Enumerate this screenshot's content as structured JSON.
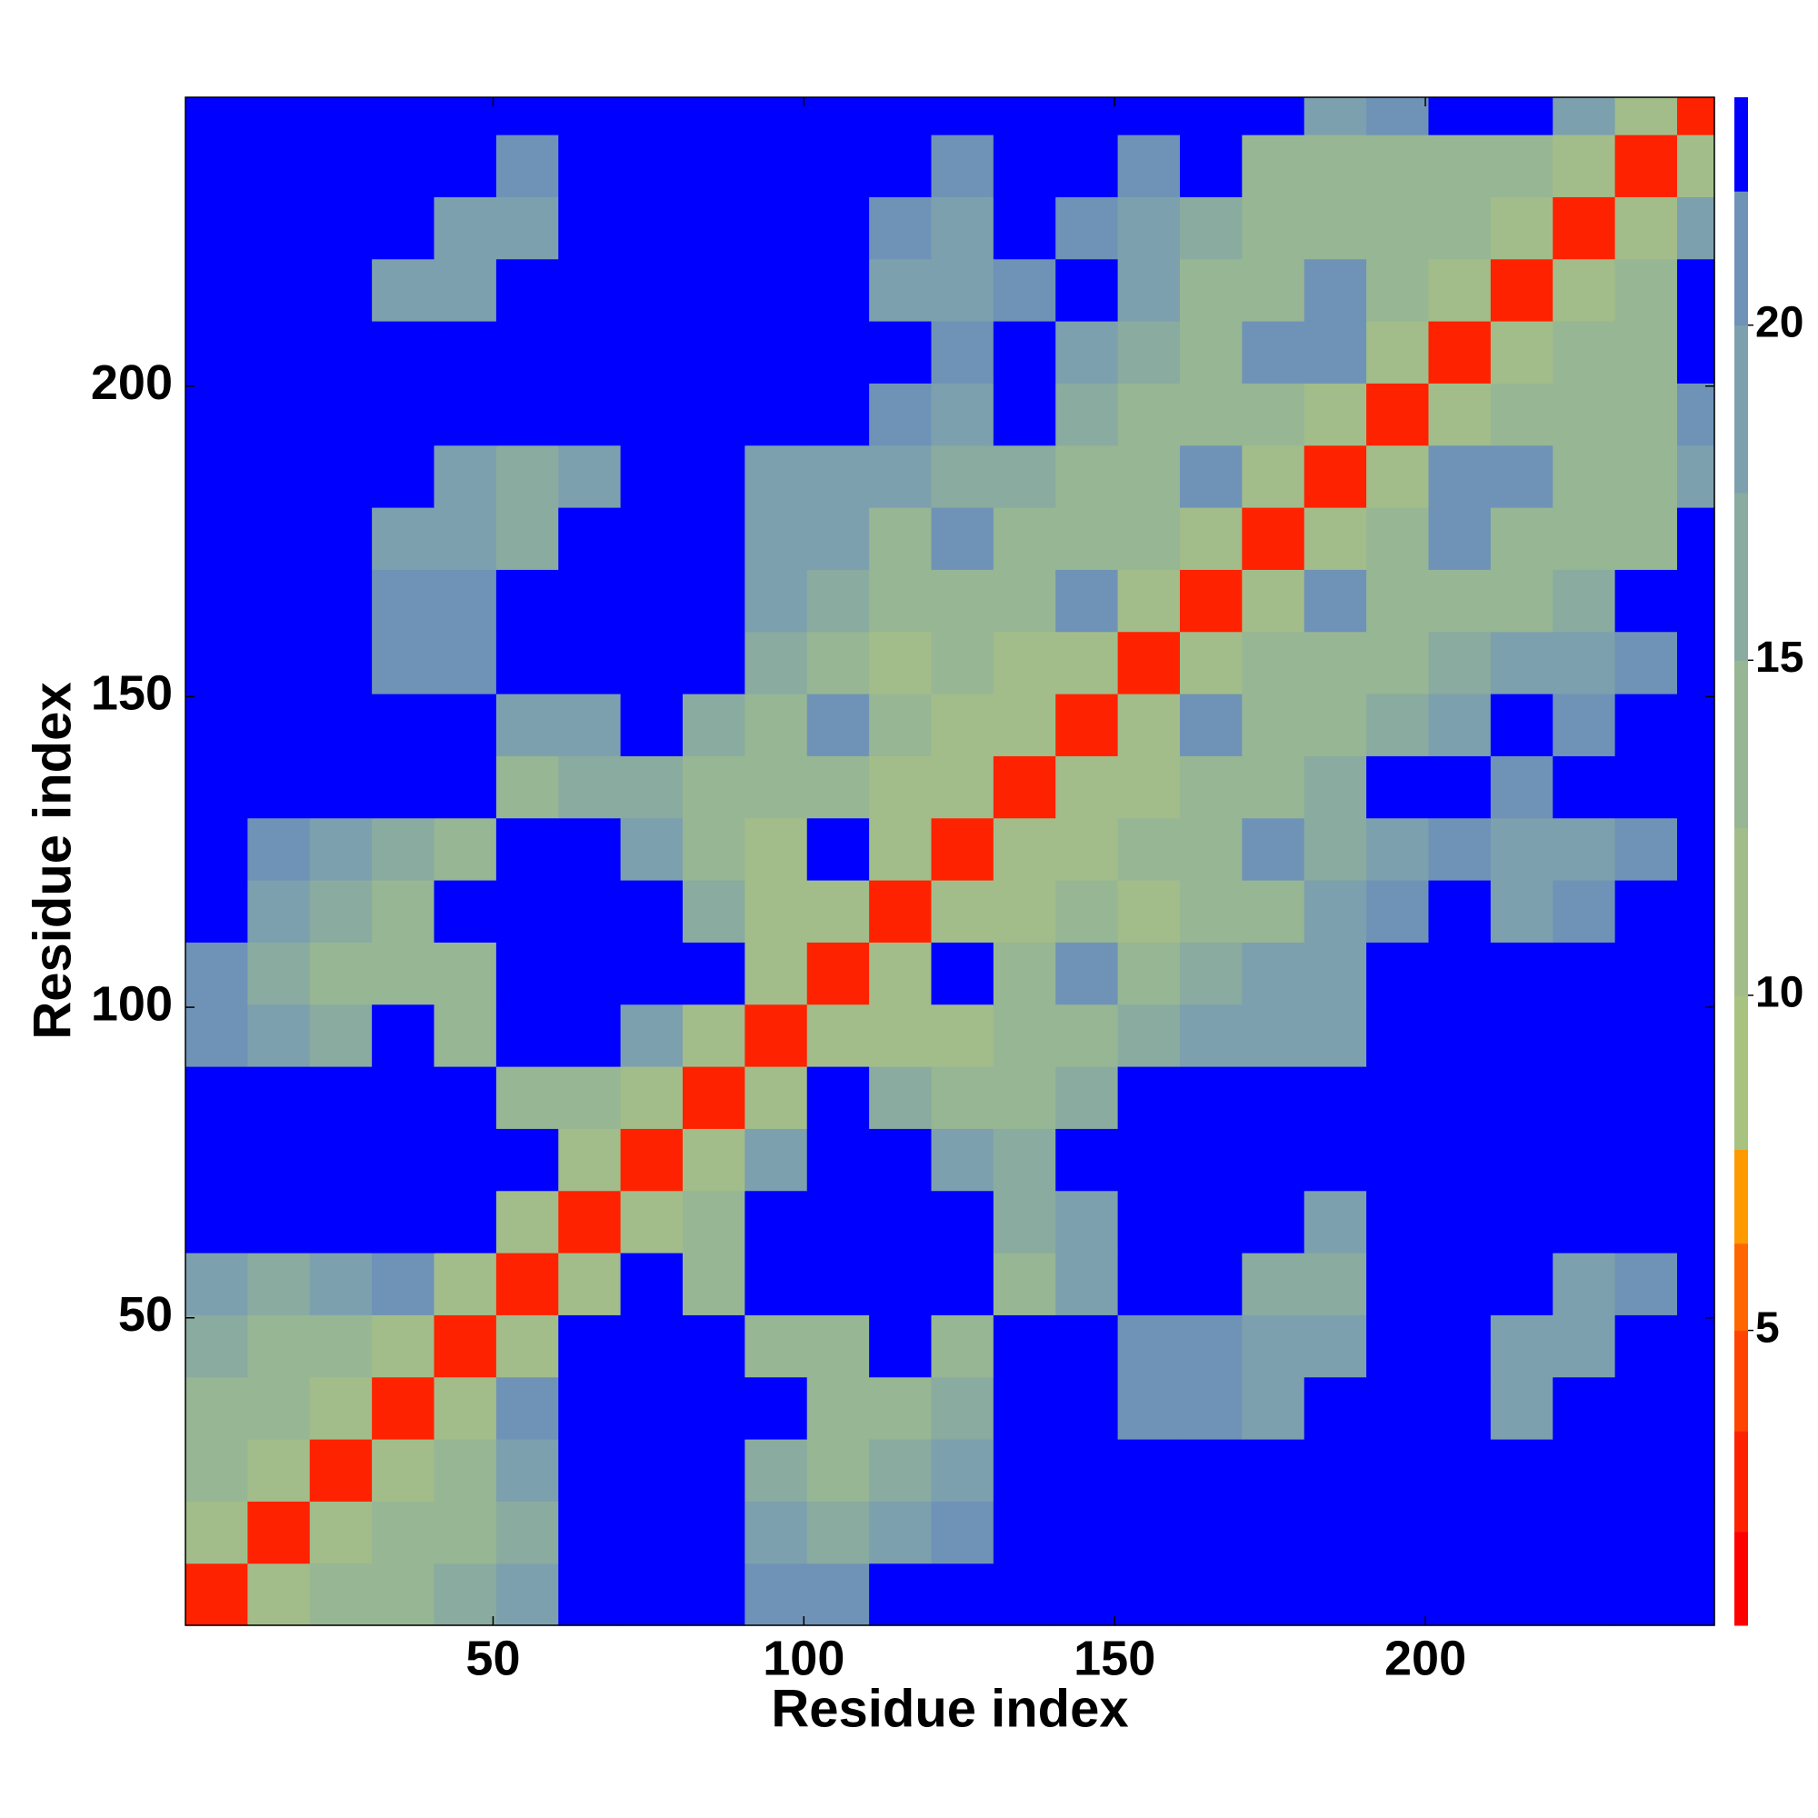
{
  "chart_data": {
    "type": "heatmap",
    "xlabel": "Residue index",
    "ylabel": "Residue index",
    "xlim": [
      0.5,
      246.5
    ],
    "ylim": [
      0.5,
      246.5
    ],
    "xticks": [
      50,
      100,
      150,
      200
    ],
    "yticks": [
      50,
      100,
      150,
      200
    ],
    "xbins": [
      0.5,
      10.5,
      20.5,
      30.5,
      40.5,
      50.5,
      60.5,
      70.5,
      80.5,
      90.5,
      100.5,
      110.5,
      120.5,
      130.5,
      140.5,
      150.5,
      160.5,
      170.5,
      180.5,
      190.5,
      200.5,
      210.5,
      220.5,
      230.5,
      240.5,
      246.5
    ],
    "ybins": [
      0.5,
      10.5,
      20.5,
      30.5,
      40.5,
      50.5,
      60.5,
      70.5,
      80.5,
      90.5,
      100.5,
      110.5,
      120.5,
      130.5,
      140.5,
      150.5,
      160.5,
      170.5,
      180.5,
      190.5,
      200.5,
      210.5,
      220.5,
      230.5,
      240.5,
      246.5
    ],
    "z": [
      [
        3,
        12,
        13,
        14,
        16,
        19,
        23,
        23,
        23,
        21,
        21,
        23,
        23,
        23,
        23,
        23,
        23,
        23,
        23,
        23,
        23,
        23,
        23,
        23,
        23
      ],
      [
        12,
        3,
        12,
        13,
        13,
        17,
        23,
        23,
        23,
        19,
        17,
        19,
        21,
        23,
        23,
        23,
        23,
        23,
        23,
        23,
        23,
        23,
        23,
        23,
        23
      ],
      [
        13,
        12,
        3,
        12,
        14,
        18,
        23,
        23,
        23,
        16,
        15,
        16,
        20,
        23,
        23,
        23,
        23,
        23,
        23,
        23,
        23,
        23,
        23,
        23,
        23
      ],
      [
        14,
        13,
        12,
        3,
        12,
        21,
        23,
        23,
        23,
        23,
        13,
        15,
        17,
        23,
        23,
        21,
        21,
        20,
        23,
        23,
        23,
        19,
        23,
        23,
        23
      ],
      [
        16,
        13,
        14,
        12,
        3,
        12,
        23,
        23,
        23,
        13,
        14,
        23,
        14,
        23,
        23,
        21,
        21,
        18,
        19,
        23,
        23,
        18,
        18,
        23,
        23
      ],
      [
        19,
        17,
        18,
        21,
        12,
        3,
        12,
        23,
        13,
        23,
        23,
        23,
        23,
        14,
        20,
        23,
        23,
        17,
        17,
        23,
        23,
        23,
        20,
        21,
        23
      ],
      [
        23,
        23,
        23,
        23,
        23,
        12,
        3,
        12,
        14,
        23,
        23,
        23,
        23,
        16,
        20,
        23,
        23,
        23,
        19,
        23,
        23,
        23,
        23,
        23,
        23
      ],
      [
        23,
        23,
        23,
        23,
        23,
        23,
        12,
        3,
        12,
        18,
        23,
        23,
        18,
        16,
        23,
        23,
        23,
        23,
        23,
        23,
        23,
        23,
        23,
        23,
        23
      ],
      [
        23,
        23,
        23,
        23,
        23,
        13,
        14,
        12,
        3,
        12,
        23,
        16,
        13,
        13,
        16,
        23,
        23,
        23,
        23,
        23,
        23,
        23,
        23,
        23,
        23
      ],
      [
        21,
        19,
        16,
        23,
        13,
        23,
        23,
        18,
        12,
        3,
        12,
        12,
        12,
        14,
        14,
        16,
        20,
        20,
        20,
        23,
        23,
        23,
        23,
        23,
        23
      ],
      [
        21,
        17,
        15,
        13,
        14,
        23,
        23,
        23,
        23,
        12,
        3,
        12,
        23,
        14,
        21,
        14,
        17,
        18,
        20,
        23,
        23,
        23,
        23,
        23,
        23
      ],
      [
        23,
        19,
        16,
        15,
        23,
        23,
        23,
        23,
        16,
        12,
        12,
        3,
        12,
        12,
        13,
        12,
        13,
        14,
        18,
        21,
        23,
        20,
        21,
        23,
        23
      ],
      [
        23,
        21,
        20,
        17,
        14,
        23,
        23,
        18,
        13,
        12,
        23,
        12,
        3,
        12,
        12,
        13,
        14,
        21,
        17,
        19,
        21,
        18,
        19,
        21,
        23
      ],
      [
        23,
        23,
        23,
        23,
        23,
        14,
        16,
        16,
        13,
        14,
        14,
        12,
        12,
        3,
        12,
        12,
        13,
        14,
        16,
        23,
        23,
        21,
        23,
        23,
        23
      ],
      [
        23,
        23,
        23,
        23,
        23,
        20,
        20,
        23,
        16,
        14,
        21,
        13,
        12,
        12,
        3,
        12,
        21,
        13,
        14,
        16,
        19,
        23,
        21,
        23,
        23
      ],
      [
        23,
        23,
        23,
        21,
        21,
        23,
        23,
        23,
        23,
        16,
        14,
        12,
        13,
        12,
        12,
        3,
        12,
        13,
        13,
        13,
        16,
        18,
        20,
        21,
        23
      ],
      [
        23,
        23,
        23,
        21,
        21,
        23,
        23,
        23,
        23,
        20,
        17,
        13,
        14,
        13,
        21,
        12,
        3,
        12,
        21,
        14,
        13,
        15,
        17,
        23,
        23
      ],
      [
        23,
        23,
        23,
        20,
        18,
        17,
        23,
        23,
        23,
        20,
        18,
        14,
        21,
        14,
        13,
        13,
        12,
        3,
        12,
        13,
        21,
        13,
        13,
        15,
        23
      ],
      [
        23,
        23,
        23,
        23,
        19,
        17,
        19,
        23,
        23,
        20,
        20,
        18,
        17,
        16,
        14,
        13,
        21,
        12,
        3,
        12,
        21,
        21,
        13,
        14,
        20
      ],
      [
        23,
        23,
        23,
        23,
        23,
        23,
        23,
        23,
        23,
        23,
        23,
        21,
        19,
        23,
        16,
        13,
        14,
        13,
        12,
        3,
        12,
        13,
        13,
        14,
        21
      ],
      [
        23,
        23,
        23,
        23,
        23,
        23,
        23,
        23,
        23,
        23,
        23,
        23,
        21,
        23,
        19,
        16,
        13,
        21,
        21,
        12,
        3,
        12,
        14,
        15,
        23
      ],
      [
        23,
        23,
        23,
        19,
        18,
        23,
        23,
        23,
        23,
        23,
        23,
        20,
        18,
        21,
        23,
        18,
        15,
        13,
        21,
        13,
        12,
        3,
        12,
        14,
        23
      ],
      [
        23,
        23,
        23,
        23,
        18,
        20,
        23,
        23,
        23,
        23,
        23,
        21,
        19,
        23,
        21,
        20,
        17,
        13,
        13,
        13,
        14,
        12,
        3,
        12,
        18
      ],
      [
        23,
        23,
        23,
        23,
        23,
        21,
        23,
        23,
        23,
        23,
        23,
        23,
        21,
        23,
        23,
        21,
        23,
        15,
        14,
        14,
        15,
        14,
        12,
        3,
        12
      ],
      [
        23,
        23,
        23,
        23,
        23,
        23,
        23,
        23,
        23,
        23,
        23,
        23,
        23,
        23,
        23,
        23,
        23,
        23,
        20,
        21,
        23,
        23,
        18,
        12,
        3
      ]
    ],
    "colorbar": {
      "levels": [
        0.6,
        2,
        3.5,
        5,
        6.3,
        7.7,
        10,
        12.5,
        15,
        17.5,
        20,
        22,
        23.4
      ],
      "colors": [
        "#ff0000",
        "#ff2200",
        "#ff4400",
        "#ff6600",
        "#ff9900",
        "#a8c280",
        "#a2bd8a",
        "#97b694",
        "#8aab9f",
        "#7da0ae",
        "#6f93b7",
        "#0000ff"
      ],
      "ticks": [
        5,
        10,
        15,
        20
      ]
    }
  }
}
